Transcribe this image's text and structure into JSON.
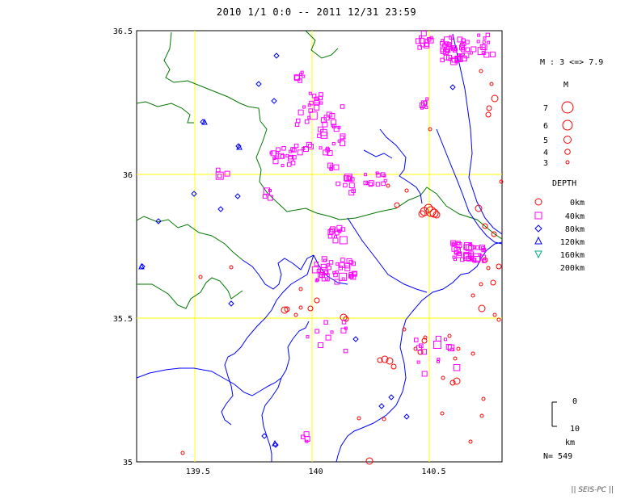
{
  "title": "2010 1/1 0:0 -- 2011 12/31 23:59",
  "axes": {
    "lon_ticks": [
      {
        "value": 139.5,
        "label": "139.5"
      },
      {
        "value": 140.0,
        "label": "140"
      },
      {
        "value": 140.5,
        "label": "140.5"
      }
    ],
    "lat_ticks": [
      {
        "value": 36.5,
        "label": "36.5"
      },
      {
        "value": 36.0,
        "label": "36"
      },
      {
        "value": 35.5,
        "label": "35.5"
      },
      {
        "value": 35.0,
        "label": "35"
      }
    ],
    "lon_range": [
      139.24,
      140.79
    ],
    "lat_range": [
      35.0,
      36.5
    ],
    "grid": true,
    "grid_color": "#ffff00"
  },
  "legend": {
    "magnitude_range": "M : 3 <=> 7.9",
    "magnitude_header": "M",
    "magnitudes": [
      "7",
      "6",
      "5",
      "4",
      "3"
    ],
    "depth_header": "DEPTH",
    "depths": [
      {
        "label": "0km",
        "symbol": "circle",
        "color": "#ff0000"
      },
      {
        "label": "40km",
        "symbol": "square",
        "color": "#ff00ff"
      },
      {
        "label": "80km",
        "symbol": "diamond",
        "color": "#0000ff"
      },
      {
        "label": "120km",
        "symbol": "triangle-up",
        "color": "#0000ff"
      },
      {
        "label": "160km",
        "symbol": "triangle-down",
        "color": "#00aa88"
      },
      {
        "label": "200km",
        "symbol": "none",
        "color": "#000000"
      }
    ],
    "scale_top": "0",
    "scale_bottom": "10",
    "scale_unit": "km",
    "count": "N= 549"
  },
  "credit": "|| SEIS-PC ||",
  "colors": {
    "coast": "#0000ff",
    "boundary": "#007700",
    "frame": "#000000",
    "shallow": "#ff0000",
    "mid": "#ff00ff",
    "deep": "#0000ff"
  }
}
